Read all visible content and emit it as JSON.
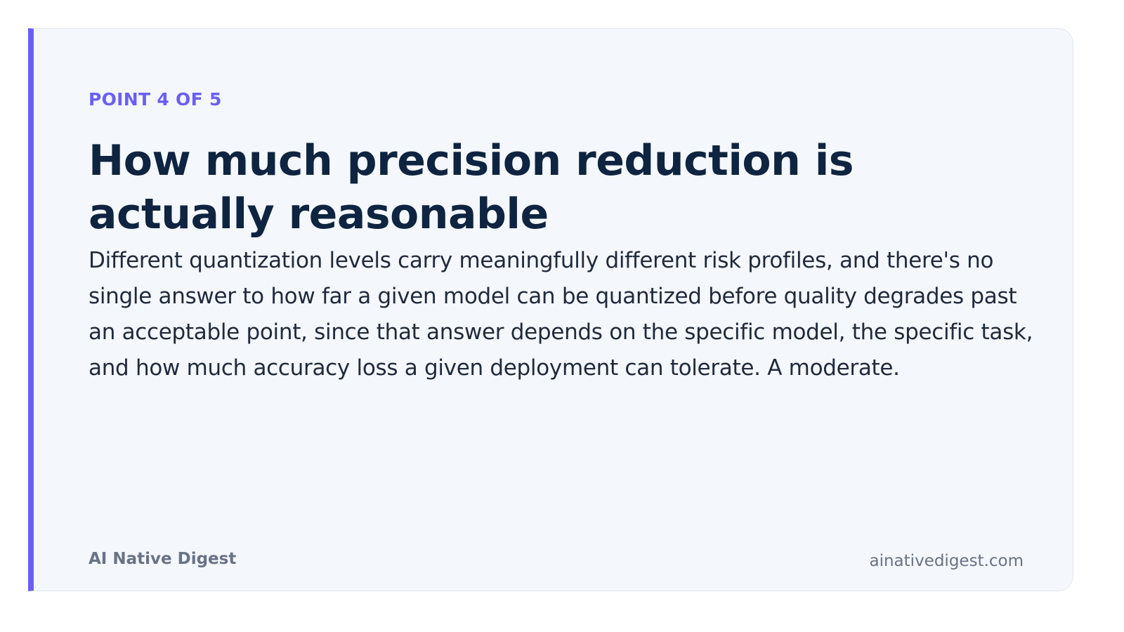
{
  "card": {
    "eyebrow": "POINT 4 OF 5",
    "title": "How much precision reduction is actually reasonable",
    "body": "Different quantization levels carry meaningfully different risk profiles, and there's no single answer to how far a given model can be quantized before quality degrades past an acceptable point, since that answer depends on the specific model, the specific task, and how much accuracy loss a given deployment can tolerate. A moderate.",
    "brand": "AI Native Digest",
    "site": "ainativedigest.com"
  }
}
